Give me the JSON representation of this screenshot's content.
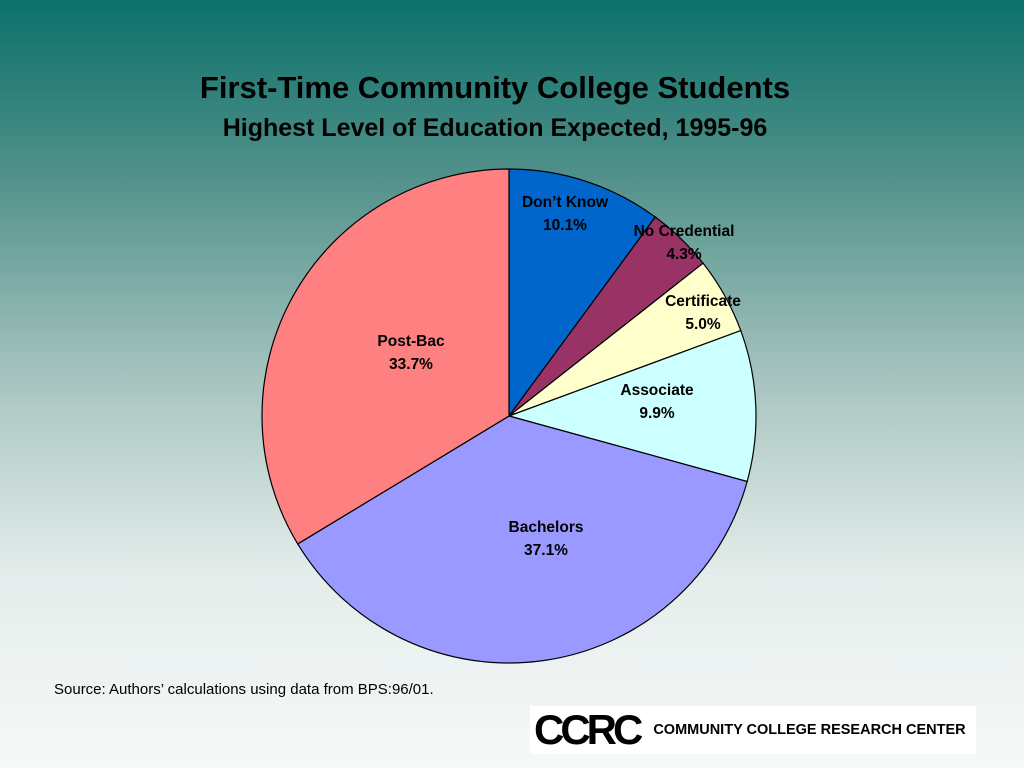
{
  "chart_data": {
    "type": "pie",
    "title": "First-Time Community College Students",
    "subtitle": "Highest Level of Education Expected, 1995-96",
    "slices": [
      {
        "label": "Don’t Know",
        "value": 10.1,
        "value_label": "10.1%",
        "color": "#0066cc"
      },
      {
        "label": "No Credential",
        "value": 4.3,
        "value_label": "4.3%",
        "color": "#993366"
      },
      {
        "label": "Certificate",
        "value": 5.0,
        "value_label": "5.0%",
        "color": "#ffffcc"
      },
      {
        "label": "Associate",
        "value": 9.9,
        "value_label": "9.9%",
        "color": "#ccffff"
      },
      {
        "label": "Bachelors",
        "value": 37.1,
        "value_label": "37.1%",
        "color": "#9999ff"
      },
      {
        "label": "Post-Bac",
        "value": 33.7,
        "value_label": "33.7%",
        "color": "#ff8080"
      }
    ],
    "start_angle_deg": 0,
    "direction": "clockwise"
  },
  "source": "Source: Authors’ calculations using data from BPS:96/01.",
  "logo": {
    "mark": "CCRC",
    "text": "COMMUNITY COLLEGE RESEARCH CENTER"
  }
}
